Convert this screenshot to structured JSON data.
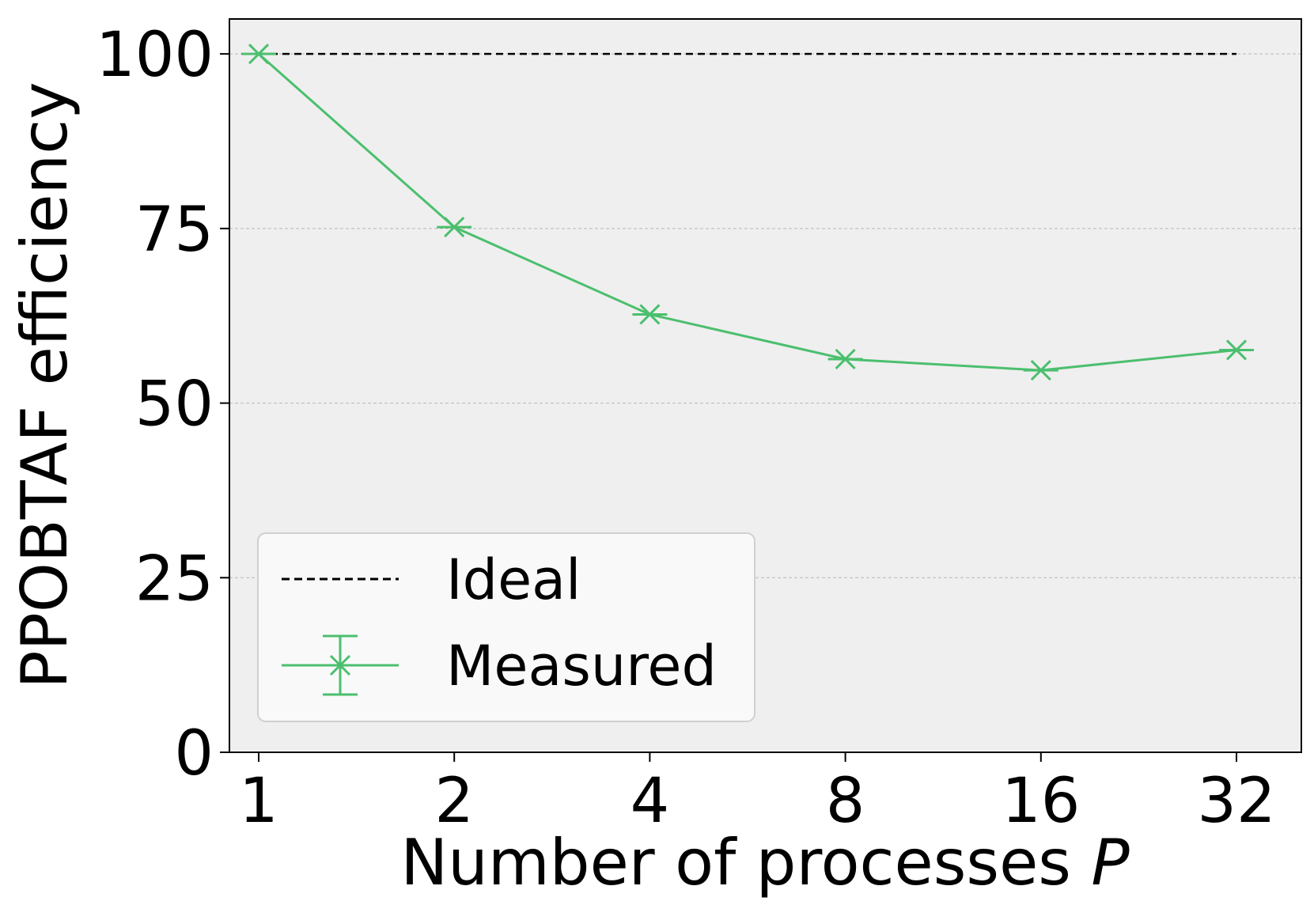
{
  "chart_data": {
    "type": "line",
    "title": "",
    "xlabel_text": "Number of processes ",
    "xlabel_var": "P",
    "ylabel": "PPOBTAF efficiency",
    "x_categories": [
      "1",
      "2",
      "4",
      "8",
      "16",
      "32"
    ],
    "x_values": [
      1,
      2,
      4,
      8,
      16,
      32
    ],
    "x_scale": "log2",
    "ylim": [
      0,
      105
    ],
    "yticks": [
      0,
      25,
      50,
      75,
      100
    ],
    "grid": "horizontal dashed",
    "legend_position": "lower-left",
    "series": [
      {
        "name": "Ideal",
        "style": "dashed",
        "color": "#000000",
        "values": [
          100,
          100,
          100,
          100,
          100,
          100
        ]
      },
      {
        "name": "Measured",
        "style": "solid-x-marker-errorbars",
        "color": "#4bbf6e",
        "values": [
          100,
          75.2,
          62.7,
          56.3,
          54.7,
          57.6
        ]
      }
    ],
    "plot_background": "#efefef"
  }
}
